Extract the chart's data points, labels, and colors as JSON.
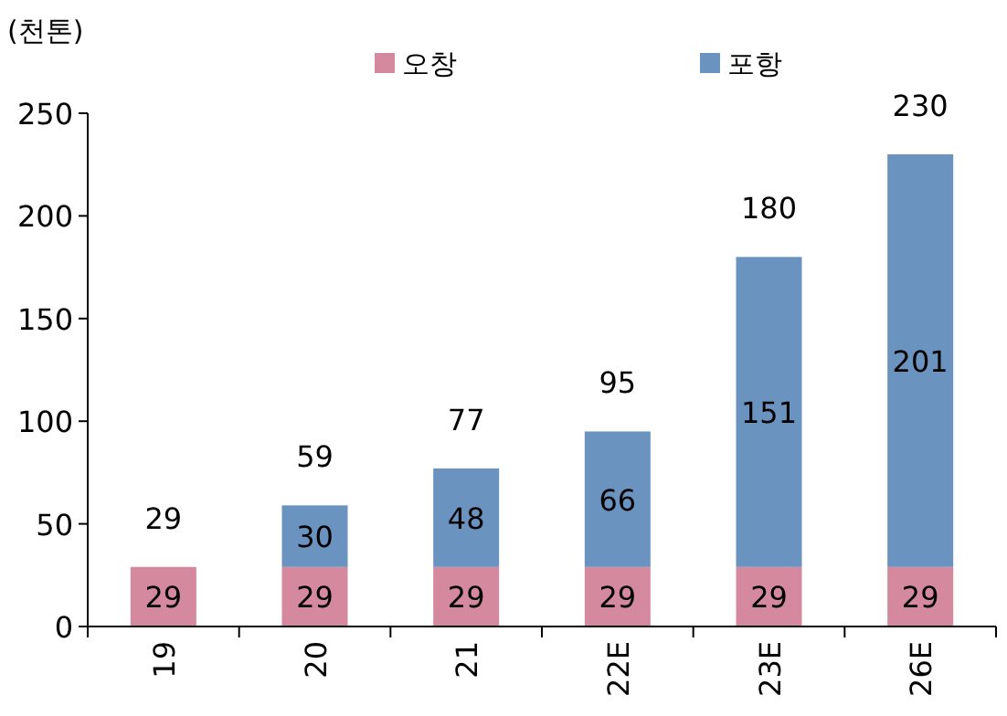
{
  "chart_data": {
    "type": "bar",
    "ylabel": "(천톤)",
    "categories": [
      "19",
      "20",
      "21",
      "22E",
      "23E",
      "26E"
    ],
    "series": [
      {
        "name": "오창",
        "color": "#d4899e",
        "values": [
          29,
          29,
          29,
          29,
          29,
          29
        ]
      },
      {
        "name": "포항",
        "color": "#6a93c0",
        "values": [
          null,
          30,
          48,
          66,
          151,
          201
        ]
      }
    ],
    "stacked": true,
    "data_labels": true,
    "totals": [
      "29",
      "59",
      "77",
      "95",
      "180",
      "230"
    ],
    "ylim": [
      0,
      250
    ],
    "yticks": [
      0,
      50,
      100,
      150,
      200,
      250
    ],
    "legend": "top",
    "grid": false
  }
}
